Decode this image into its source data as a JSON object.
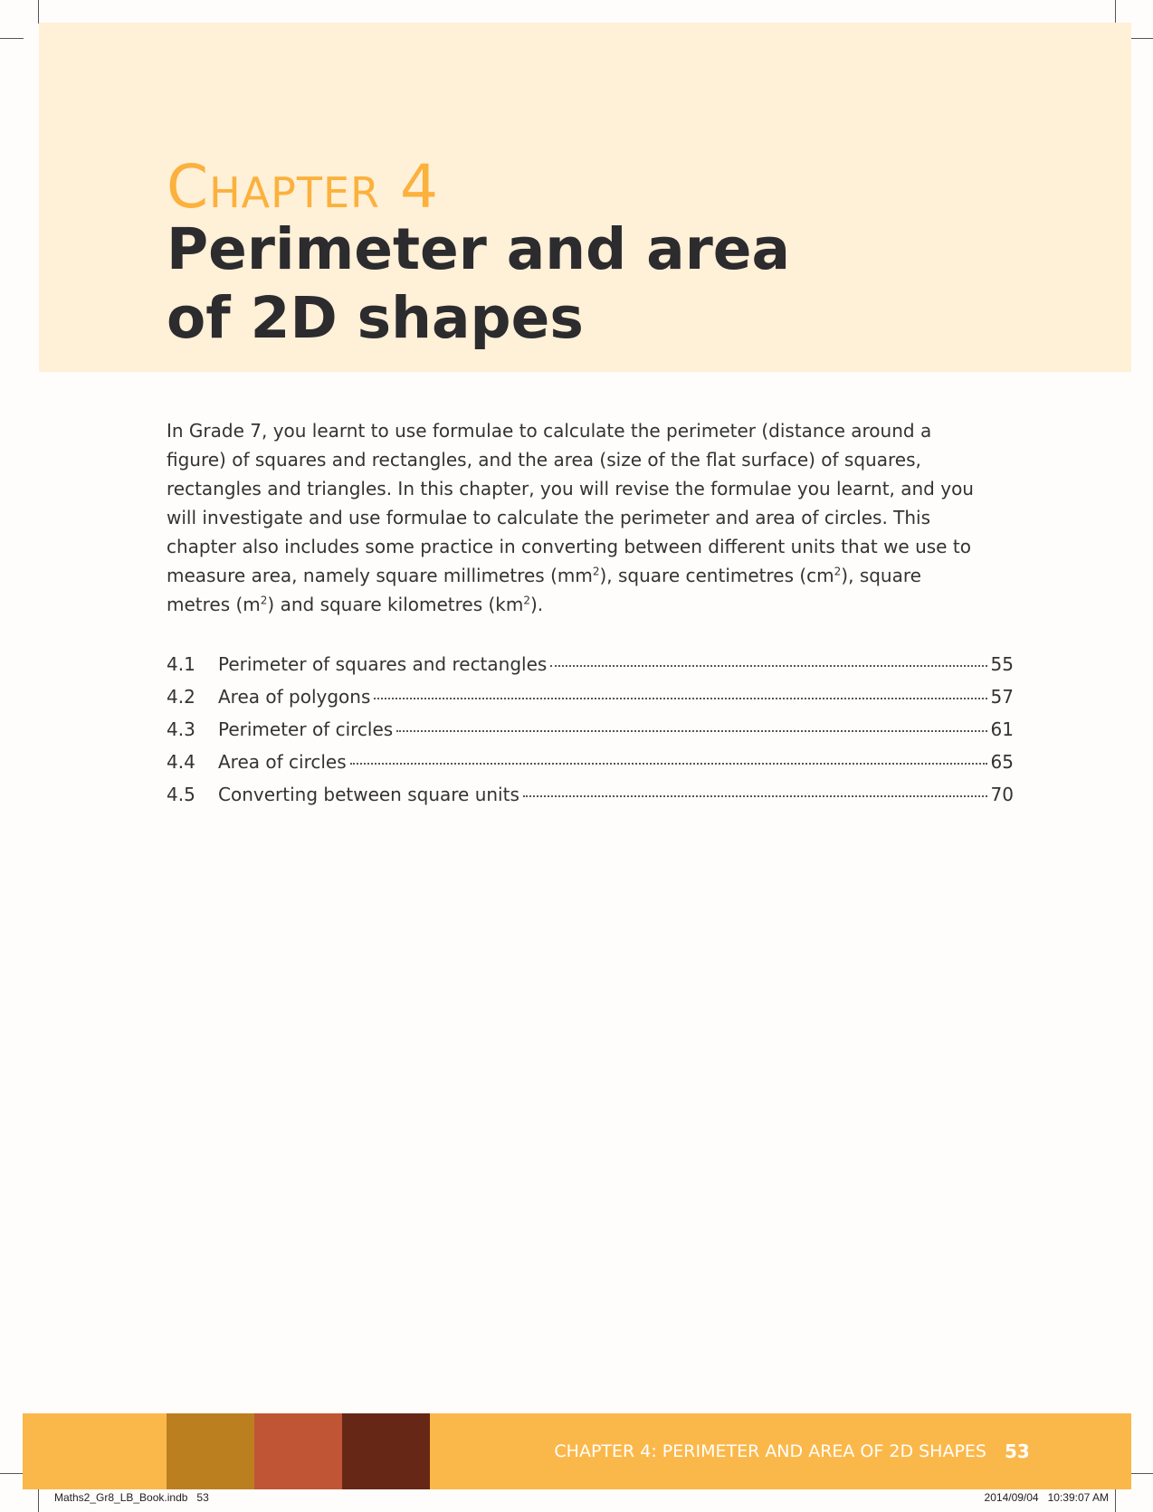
{
  "chapter": {
    "label": "Chapter 4",
    "title_line1": "Perimeter and area",
    "title_line2": "of 2D shapes"
  },
  "intro": {
    "part1": "In Grade 7, you learnt to use formulae to calculate the perimeter (distance around a figure) of squares and rectangles, and the area (size of the flat surface) of squares, rectangles and triangles. In this chapter, you will revise the formulae you learnt, and you will investigate and use formulae to calculate the perimeter and area of circles. This chapter also includes some practice in converting between different units that we use to measure area, namely square millimetres (mm",
    "part2": "), square centimetres (cm",
    "part3": "), square metres (m",
    "part4": ") and square kilometres (km",
    "part5": ").",
    "superscript": "2"
  },
  "toc": [
    {
      "number": "4.1",
      "title": "Perimeter of squares and rectangles",
      "page": "55"
    },
    {
      "number": "4.2",
      "title": "Area of polygons",
      "page": "57"
    },
    {
      "number": "4.3",
      "title": "Perimeter of circles",
      "page": "61"
    },
    {
      "number": "4.4",
      "title": "Area of circles",
      "page": "65"
    },
    {
      "number": "4.5",
      "title": "Converting between square units",
      "page": "70"
    }
  ],
  "footer": {
    "running_head": "CHAPTER 4: PERIMETER AND AREA OF 2D SHAPES",
    "page_number": "53",
    "swatch_colors": [
      "#bc7f1f",
      "#c05536",
      "#662716"
    ]
  },
  "slug": {
    "left": "Maths2_Gr8_LB_Book.indb   53",
    "right": "2014/09/04   10:39:07 AM"
  },
  "colors": {
    "header_background": "#fff0d8",
    "chapter_label": "#fbb13c",
    "footer_band": "#fbb84a"
  }
}
